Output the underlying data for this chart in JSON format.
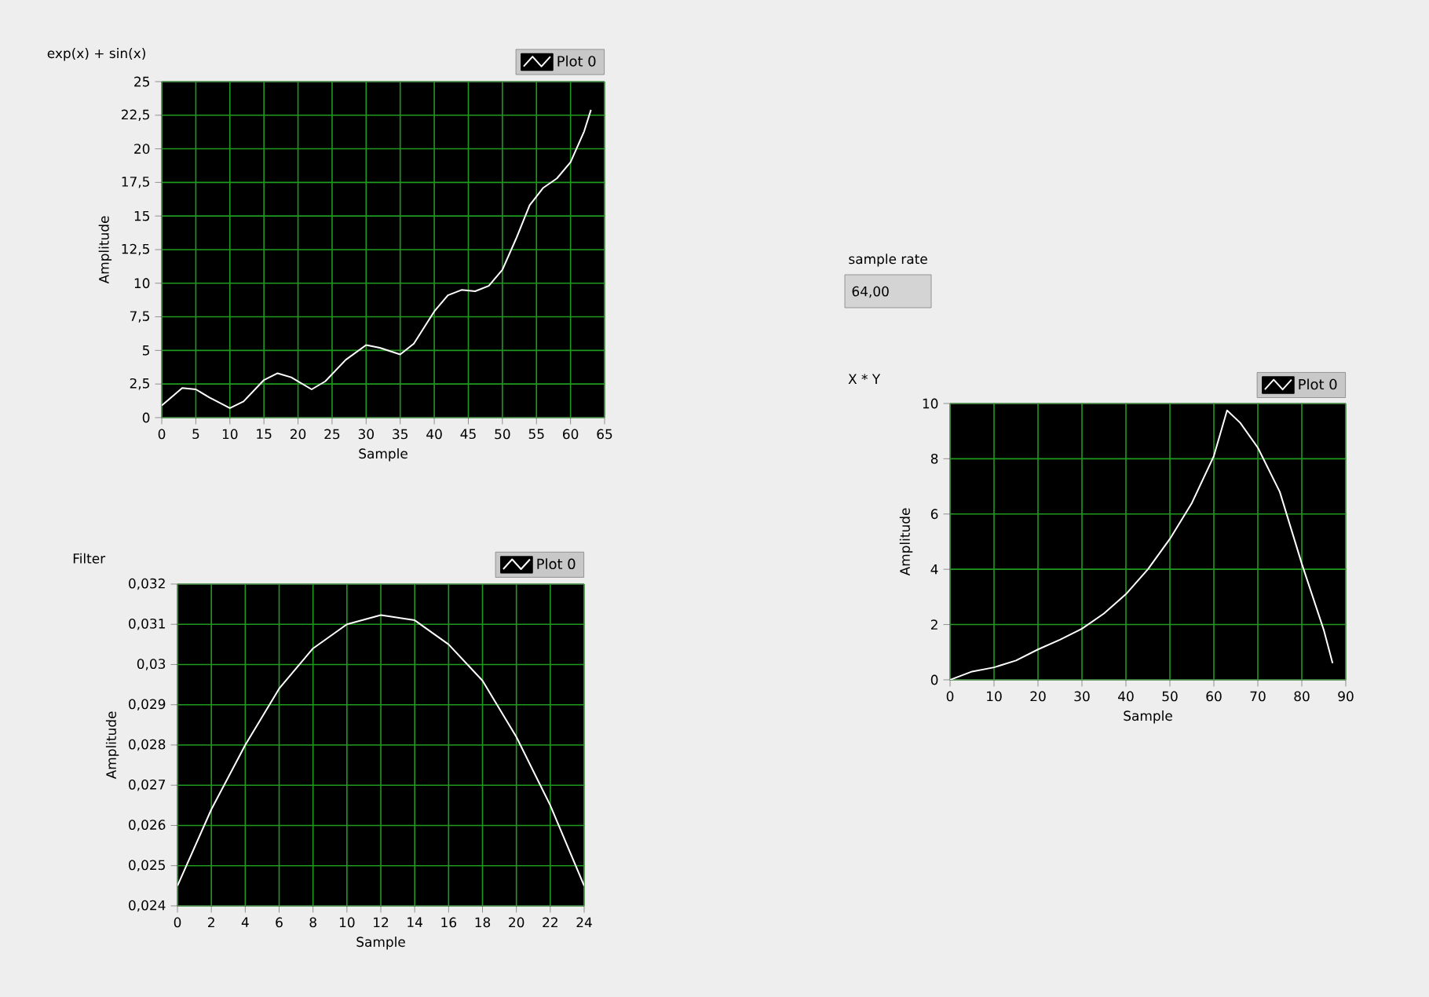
{
  "chart_data": [
    {
      "type": "line",
      "title": "exp(x) + sin(x)",
      "xlabel": "Sample",
      "ylabel": "Amplitude",
      "grid": true,
      "legend": "top right",
      "xlim": [
        0,
        65
      ],
      "xticks": [
        0,
        5,
        10,
        15,
        20,
        25,
        30,
        35,
        40,
        45,
        50,
        55,
        60,
        65
      ],
      "ylim": [
        0,
        25
      ],
      "yticks": [
        0,
        {
          "value": 2.5,
          "label": "2,5"
        },
        5,
        {
          "value": 7.5,
          "label": "7,5"
        },
        10,
        {
          "value": 12.5,
          "label": "12,5"
        },
        15,
        {
          "value": 17.5,
          "label": "17,5"
        },
        20,
        {
          "value": 22.5,
          "label": "22,5"
        },
        25
      ],
      "series": [
        {
          "name": "Plot 0",
          "color": "#ffffff",
          "x": [
            0,
            3,
            5,
            7,
            10,
            12,
            15,
            17,
            19,
            22,
            24,
            27,
            30,
            32,
            35,
            37,
            40,
            42,
            44,
            46,
            48,
            50,
            52,
            54,
            56,
            58,
            60,
            62,
            63
          ],
          "values": [
            0.9,
            2.2,
            2.1,
            1.5,
            0.7,
            1.2,
            2.8,
            3.3,
            3.0,
            2.1,
            2.7,
            4.3,
            5.4,
            5.2,
            4.7,
            5.5,
            7.9,
            9.1,
            9.5,
            9.4,
            9.8,
            11,
            13.3,
            15.8,
            17.1,
            17.8,
            19.0,
            21.3,
            22.9
          ]
        }
      ]
    },
    {
      "type": "line",
      "title": "Filter",
      "xlabel": "Sample",
      "ylabel": "Amplitude",
      "grid": true,
      "legend": "top right",
      "xlim": [
        0,
        24
      ],
      "xticks": [
        0,
        2,
        4,
        6,
        8,
        10,
        12,
        14,
        16,
        18,
        20,
        22,
        24
      ],
      "ylim": [
        0.024,
        0.032
      ],
      "yticks": [
        {
          "value": 0.024,
          "label": "0,024"
        },
        {
          "value": 0.025,
          "label": "0,025"
        },
        {
          "value": 0.026,
          "label": "0,026"
        },
        {
          "value": 0.027,
          "label": "0,027"
        },
        {
          "value": 0.028,
          "label": "0,028"
        },
        {
          "value": 0.029,
          "label": "0,029"
        },
        {
          "value": 0.03,
          "label": "0,03"
        },
        {
          "value": 0.031,
          "label": "0,031"
        },
        {
          "value": 0.032,
          "label": "0,032"
        }
      ],
      "series": [
        {
          "name": "Plot 0",
          "color": "#ffffff",
          "x": [
            0,
            2,
            4,
            6,
            8,
            10,
            12,
            14,
            16,
            18,
            20,
            22,
            24
          ],
          "values": [
            0.0245,
            0.0264,
            0.028,
            0.0294,
            0.0304,
            0.031,
            0.03123,
            0.0311,
            0.0305,
            0.0296,
            0.0282,
            0.0265,
            0.0245
          ]
        }
      ]
    },
    {
      "type": "line",
      "title": "X * Y",
      "xlabel": "Sample",
      "ylabel": "Amplitude",
      "grid": true,
      "legend": "top right",
      "xlim": [
        0,
        90
      ],
      "xticks": [
        0,
        10,
        20,
        30,
        40,
        50,
        60,
        70,
        80,
        90
      ],
      "ylim": [
        0,
        10
      ],
      "yticks": [
        0,
        2,
        4,
        6,
        8,
        10
      ],
      "series": [
        {
          "name": "Plot 0",
          "color": "#ffffff",
          "x": [
            0,
            5,
            10,
            15,
            20,
            25,
            30,
            35,
            40,
            45,
            50,
            55,
            60,
            63,
            66,
            70,
            75,
            80,
            85,
            87
          ],
          "values": [
            0,
            0.3,
            0.45,
            0.7,
            1.1,
            1.45,
            1.85,
            2.4,
            3.1,
            4.0,
            5.1,
            6.4,
            8.1,
            9.75,
            9.3,
            8.4,
            6.8,
            4.2,
            1.8,
            0.6
          ]
        }
      ]
    },
    {
      "type": "other",
      "title": "sample rate",
      "annotations": [
        "64,00"
      ]
    }
  ]
}
